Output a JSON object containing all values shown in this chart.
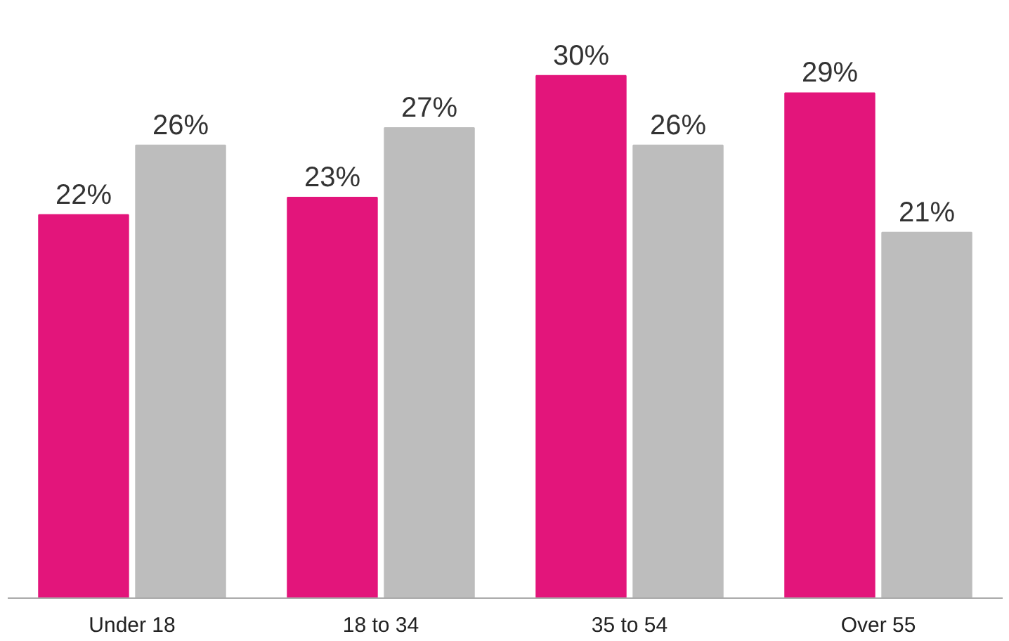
{
  "chart_data": {
    "type": "bar",
    "categories": [
      "Under 18",
      "18 to 34",
      "35 to 54",
      "Over 55"
    ],
    "series": [
      {
        "color": "#e3157b",
        "values": [
          22,
          23,
          30,
          29
        ],
        "value_labels": [
          "22%",
          "23%",
          "30%",
          "29%"
        ]
      },
      {
        "color": "#bdbdbd",
        "values": [
          26,
          27,
          26,
          21
        ],
        "value_labels": [
          "26%",
          "27%",
          "26%",
          "21%"
        ]
      }
    ],
    "tick_labels": "x"
  }
}
